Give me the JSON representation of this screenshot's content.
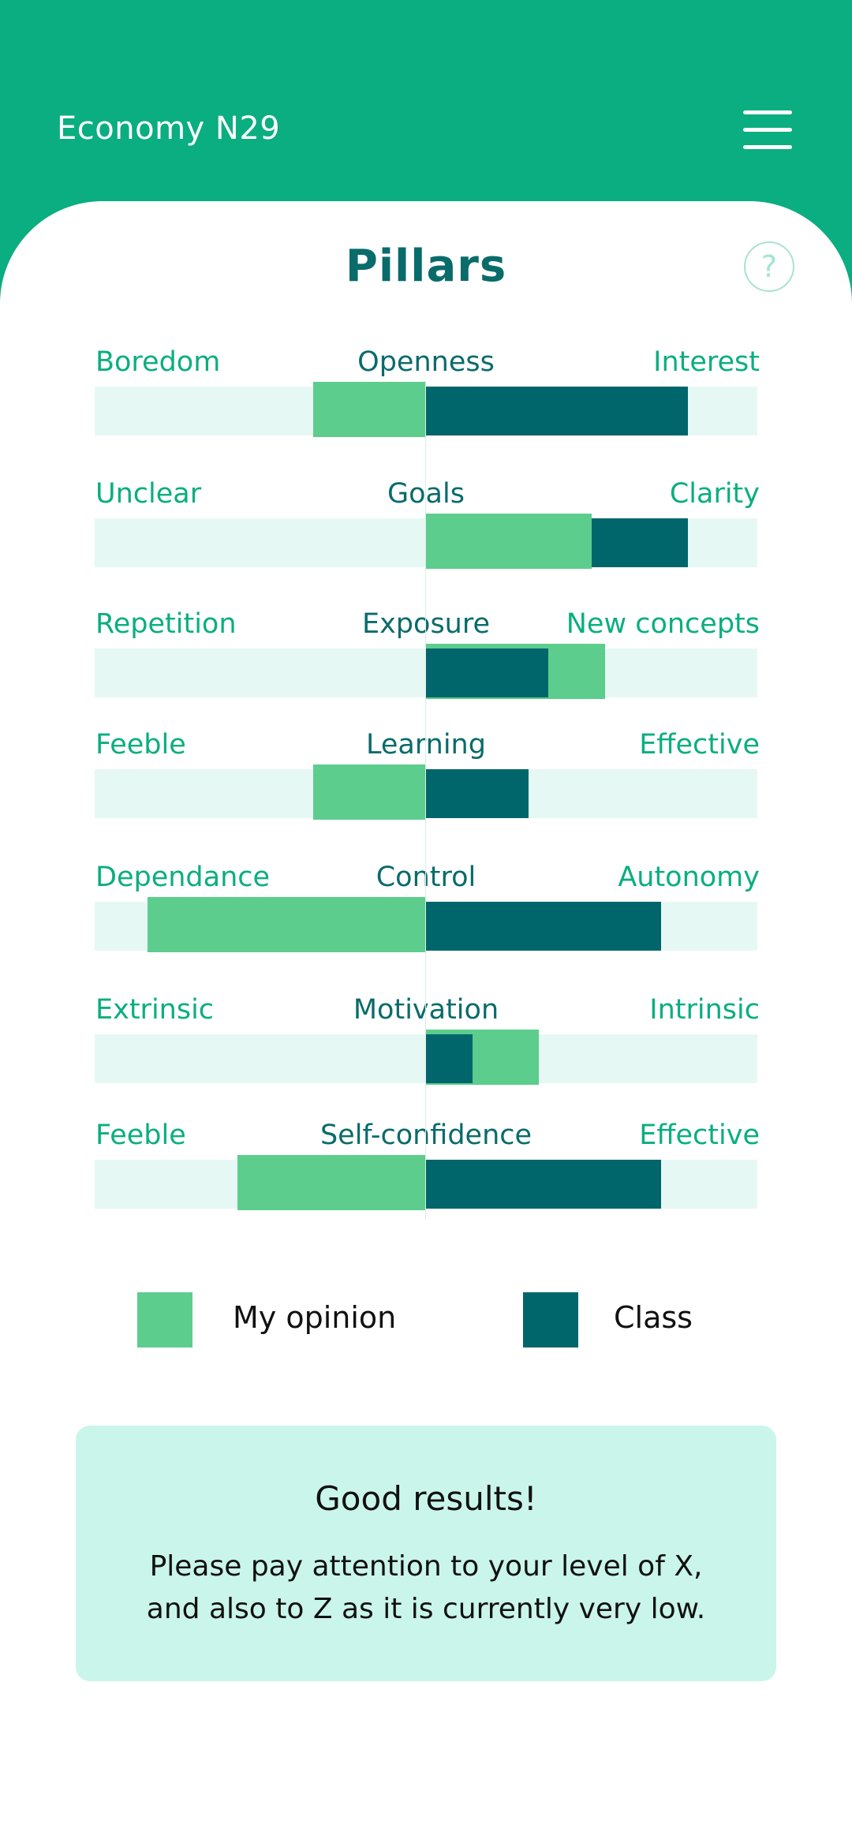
{
  "header": {
    "title": "Economy N29",
    "menu_icon": "hamburger-menu-icon",
    "background": "#0aae80"
  },
  "panel": {
    "title": "Pillars",
    "help_glyph": "?",
    "help_icon": "question-circle-icon"
  },
  "colors": {
    "my_opinion": "#5ccd8c",
    "class": "#00666b",
    "track": "#e6f8f4",
    "pillar_name": "#0a6b6b",
    "pole_label": "#0aae80"
  },
  "chart_data": {
    "type": "bar",
    "orientation": "horizontal-diverging",
    "axis_range": [
      -100,
      100
    ],
    "series": [
      {
        "name": "My opinion",
        "color": "#5ccd8c"
      },
      {
        "name": "Class",
        "color": "#00666b"
      }
    ],
    "pillars": [
      {
        "name": "Openness",
        "left": "Boredom",
        "right": "Interest",
        "my_opinion": -34,
        "class": 79
      },
      {
        "name": "Goals",
        "left": "Unclear",
        "right": "Clarity",
        "my_opinion": 50,
        "class": 79
      },
      {
        "name": "Exposure",
        "left": "Repetition",
        "right": "New concepts",
        "my_opinion": 54,
        "class": 37
      },
      {
        "name": "Learning",
        "left": "Feeble",
        "right": "Effective",
        "my_opinion": -34,
        "class": 31
      },
      {
        "name": "Control",
        "left": "Dependance",
        "right": "Autonomy",
        "my_opinion": -84,
        "class": 71
      },
      {
        "name": "Motivation",
        "left": "Extrinsic",
        "right": "Intrinsic",
        "my_opinion": 34,
        "class": 14
      },
      {
        "name": "Self-confidence",
        "left": "Feeble",
        "right": "Effective",
        "my_opinion": -57,
        "class": 71
      }
    ]
  },
  "legend": {
    "mine_label": "My opinion",
    "class_label": "Class"
  },
  "message": {
    "title": "Good results!",
    "body_line1": "Please pay attention to your level of X,",
    "body_line2": "and also to Z as it is currently very low."
  }
}
